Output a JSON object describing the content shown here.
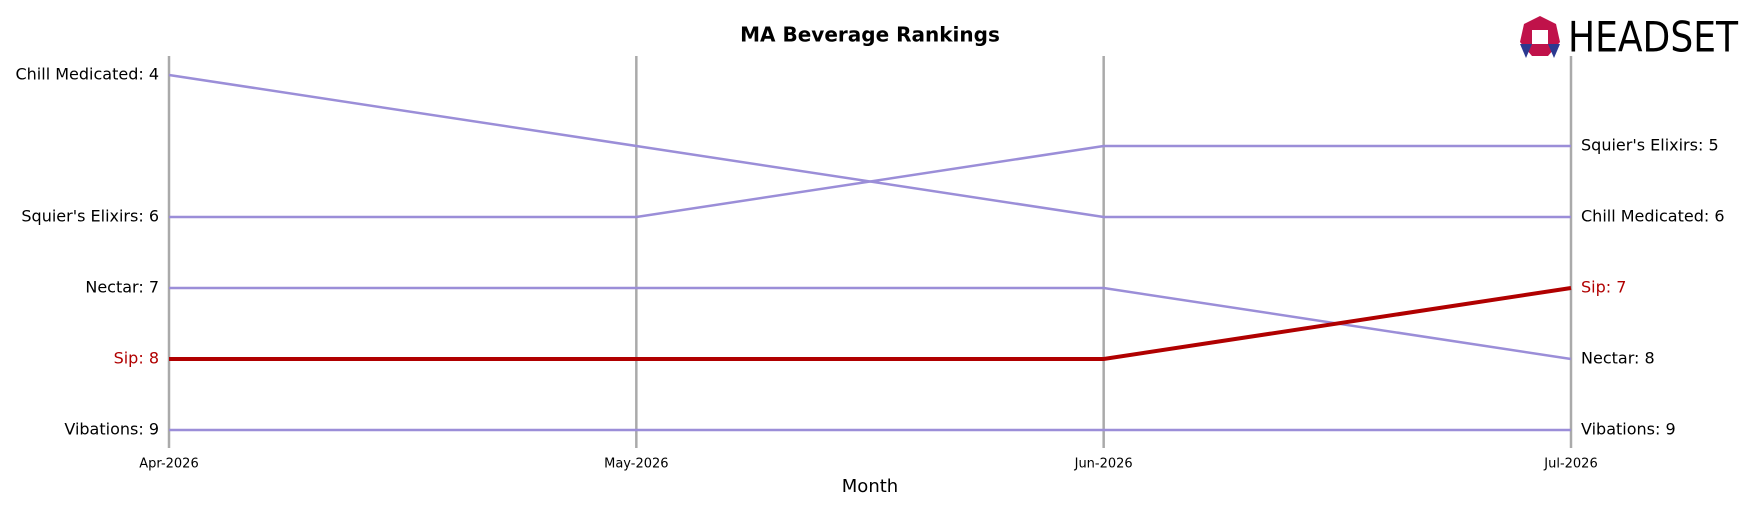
{
  "chart_data": {
    "type": "line",
    "title": "MA Beverage Rankings",
    "xlabel": "Month",
    "logo": "HEADSET",
    "categories": [
      "Apr-2026",
      "May-2026",
      "Jun-2026",
      "Jul-2026"
    ],
    "ylim": [
      9,
      4
    ],
    "grid": true,
    "series": [
      {
        "name": "Chill Medicated",
        "color": "#9b8ed8",
        "values": [
          4,
          5,
          6,
          6
        ],
        "value_labels": [
          "Chill Medicated: 4",
          null,
          null,
          "Chill Medicated: 6"
        ]
      },
      {
        "name": "Squier's Elixirs",
        "color": "#9b8ed8",
        "values": [
          6,
          6,
          5,
          5
        ],
        "value_labels": [
          "Squier's Elixirs: 6",
          null,
          null,
          "Squier's Elixirs: 5"
        ]
      },
      {
        "name": "Nectar",
        "color": "#9b8ed8",
        "values": [
          7,
          7,
          7,
          8
        ],
        "value_labels": [
          "Nectar: 7",
          null,
          null,
          "Nectar: 8"
        ]
      },
      {
        "name": "Vibations",
        "color": "#9b8ed8",
        "values": [
          9,
          9,
          9,
          9
        ],
        "value_labels": [
          "Vibations: 9",
          null,
          null,
          "Vibations: 9"
        ]
      },
      {
        "name": "Sip",
        "color": "#b00000",
        "values": [
          8,
          8,
          8,
          7
        ],
        "value_labels": [
          "Sip: 8",
          null,
          null,
          "Sip: 7"
        ]
      }
    ]
  }
}
